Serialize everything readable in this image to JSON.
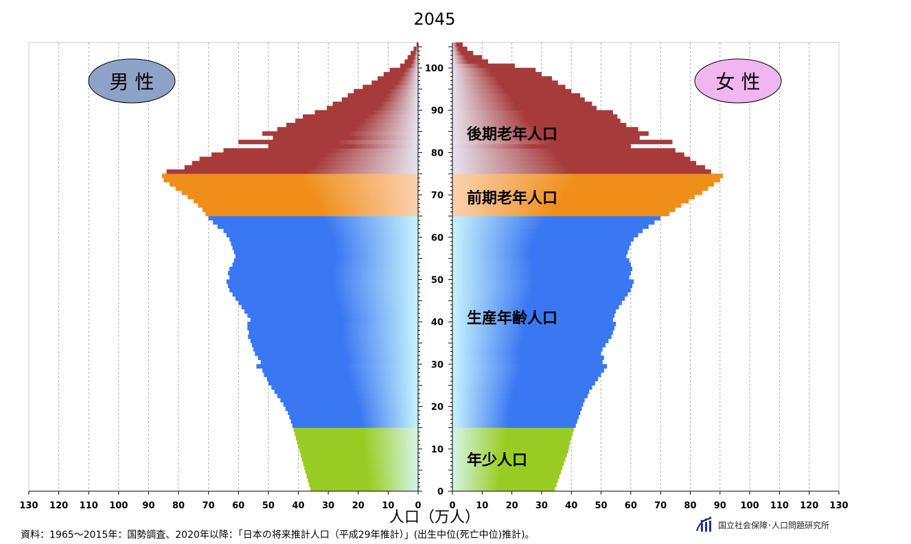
{
  "chart_data": {
    "type": "population-pyramid",
    "title": "2045",
    "xlabel": "人口（万人）",
    "xlim": [
      0,
      130
    ],
    "ylim": [
      0,
      106
    ],
    "x_ticks": [
      130,
      120,
      110,
      100,
      90,
      80,
      70,
      60,
      50,
      40,
      30,
      20,
      10,
      0
    ],
    "y_ticks": [
      0,
      10,
      20,
      30,
      40,
      50,
      60,
      70,
      80,
      90,
      100
    ],
    "grid": true,
    "ages": [
      0,
      1,
      2,
      3,
      4,
      5,
      6,
      7,
      8,
      9,
      10,
      11,
      12,
      13,
      14,
      15,
      16,
      17,
      18,
      19,
      20,
      21,
      22,
      23,
      24,
      25,
      26,
      27,
      28,
      29,
      30,
      31,
      32,
      33,
      34,
      35,
      36,
      37,
      38,
      39,
      40,
      41,
      42,
      43,
      44,
      45,
      46,
      47,
      48,
      49,
      50,
      51,
      52,
      53,
      54,
      55,
      56,
      57,
      58,
      59,
      60,
      61,
      62,
      63,
      64,
      65,
      66,
      67,
      68,
      69,
      70,
      71,
      72,
      73,
      74,
      75,
      76,
      77,
      78,
      79,
      80,
      81,
      82,
      83,
      84,
      85,
      86,
      87,
      88,
      89,
      90,
      91,
      92,
      93,
      94,
      95,
      96,
      97,
      98,
      99,
      100,
      101,
      102,
      103,
      104,
      105
    ],
    "series": [
      {
        "name": "男性",
        "values": [
          36.0,
          36.4,
          36.8,
          37.2,
          37.6,
          38.0,
          38.4,
          38.8,
          39.2,
          39.6,
          40.0,
          40.4,
          40.8,
          41.2,
          41.6,
          42.0,
          42.5,
          43.0,
          43.5,
          44.3,
          45.0,
          46.0,
          47.0,
          48.0,
          49.0,
          50.0,
          50.5,
          51.5,
          52.0,
          54.0,
          52.5,
          53.5,
          54.5,
          55.0,
          55.5,
          56.0,
          56.8,
          56.5,
          57.0,
          57.0,
          56.0,
          57.0,
          58.0,
          59.0,
          60.0,
          61.0,
          62.0,
          63.0,
          63.5,
          64.0,
          63.0,
          63.5,
          63.0,
          62.0,
          61.5,
          61.0,
          61.5,
          62.0,
          62.5,
          63.0,
          64.0,
          65.0,
          67.0,
          68.5,
          70.0,
          71.0,
          72.0,
          73.5,
          75.0,
          77.0,
          79.0,
          81.0,
          83.0,
          85.0,
          85.5,
          84.0,
          78.0,
          75.5,
          73.0,
          69.0,
          65.0,
          50.0,
          60.0,
          48.5,
          52.0,
          47.0,
          44.0,
          41.0,
          38.5,
          34.5,
          30.5,
          28.5,
          25.5,
          23.5,
          21.5,
          18.5,
          15.5,
          13.5,
          11.5,
          9.5,
          6.0,
          4.5,
          3.5,
          2.5,
          1.5,
          0.5
        ]
      },
      {
        "name": "女性",
        "values": [
          34.5,
          35.0,
          35.5,
          36.0,
          36.5,
          37.0,
          37.5,
          38.0,
          38.5,
          39.0,
          39.3,
          39.6,
          40.0,
          40.4,
          40.8,
          41.5,
          42.0,
          42.5,
          43.0,
          43.5,
          44.0,
          44.5,
          45.5,
          46.0,
          47.0,
          48.0,
          49.0,
          50.0,
          51.0,
          52.0,
          50.5,
          51.0,
          50.0,
          50.5,
          51.5,
          52.5,
          53.5,
          54.0,
          54.5,
          55.0,
          54.0,
          54.5,
          55.0,
          56.0,
          57.0,
          58.0,
          59.0,
          60.0,
          60.5,
          61.0,
          59.5,
          60.0,
          60.5,
          60.0,
          59.5,
          58.5,
          59.0,
          59.5,
          60.0,
          61.0,
          62.5,
          64.0,
          66.0,
          68.0,
          70.0,
          73.0,
          75.0,
          77.0,
          79.5,
          81.5,
          84.0,
          86.0,
          88.0,
          90.0,
          91.0,
          87.0,
          85.0,
          82.0,
          80.0,
          78.0,
          75.0,
          60.0,
          74.0,
          63.0,
          66.0,
          62.5,
          58.5,
          56.5,
          55.5,
          54.0,
          48.5,
          47.0,
          44.5,
          43.0,
          40.0,
          38.0,
          35.5,
          33.5,
          30.0,
          28.0,
          21.0,
          12.0,
          10.0,
          7.0,
          5.0,
          3.5
        ]
      }
    ],
    "age_groups": [
      {
        "label": "年少人口",
        "from": 0,
        "to": 14,
        "colors": [
          "#99cc22",
          "#d6f5e8"
        ]
      },
      {
        "label": "生産年齢人口",
        "from": 15,
        "to": 64,
        "colors": [
          "#3a77f2",
          "#c8f4fc"
        ]
      },
      {
        "label": "前期老年人口",
        "from": 65,
        "to": 74,
        "colors": [
          "#ef8f1a",
          "#fbd1b0"
        ]
      },
      {
        "label": "後期老年人口",
        "from": 75,
        "to": 106,
        "colors": [
          "#a73b3b",
          "#e6e4ef"
        ]
      }
    ],
    "legend": {
      "male": "男 性",
      "female": "女 性"
    },
    "colors": {
      "male_badge": "#8ea2c8",
      "female_badge": "#f0b6f0",
      "grid": "#a8a8a8"
    }
  },
  "notes": {
    "source": "資料：1965～2015年：国勢調査、2020年以降：「日本の将来推計人口（平成29年推計）」(出生中位(死亡中位)推計)。",
    "org": "国立社会保障･人口問題研究所"
  }
}
